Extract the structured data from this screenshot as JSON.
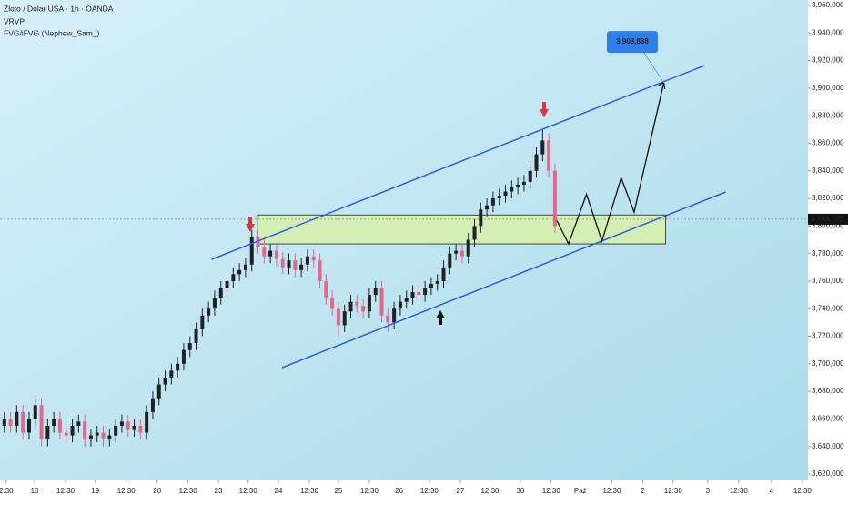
{
  "chart_data": {
    "type": "candlestick",
    "title": "Zloto / Dolar USA · 1h · OANDA",
    "indicators": [
      "VRVP",
      "FVG/iFVG (Nephew_Sam_)"
    ],
    "xlim": [
      -0.7,
      129.9
    ],
    "xticks": [
      {
        "value": 0.3,
        "label": "2:30"
      },
      {
        "value": 4.9,
        "label": "18"
      },
      {
        "value": 9.9,
        "label": "12:30"
      },
      {
        "value": 14.7,
        "label": "19"
      },
      {
        "value": 19.7,
        "label": "12:30"
      },
      {
        "value": 24.7,
        "label": "20"
      },
      {
        "value": 29.7,
        "label": "12:30"
      },
      {
        "value": 34.6,
        "label": "23"
      },
      {
        "value": 39.4,
        "label": "12:30"
      },
      {
        "value": 44.3,
        "label": "24"
      },
      {
        "value": 49.3,
        "label": "12:30"
      },
      {
        "value": 54,
        "label": "25"
      },
      {
        "value": 59,
        "label": "12:30"
      },
      {
        "value": 63.8,
        "label": "26"
      },
      {
        "value": 68.7,
        "label": "12:30"
      },
      {
        "value": 73.7,
        "label": "27"
      },
      {
        "value": 78.5,
        "label": "12:30"
      },
      {
        "value": 83.4,
        "label": "30"
      },
      {
        "value": 88.4,
        "label": "12:30"
      },
      {
        "value": 93.1,
        "label": "Paź"
      },
      {
        "value": 98.2,
        "label": "12:30"
      },
      {
        "value": 103.2,
        "label": "2"
      },
      {
        "value": 108.1,
        "label": "12:30"
      },
      {
        "value": 113.7,
        "label": "3"
      },
      {
        "value": 118.7,
        "label": "12:30"
      },
      {
        "value": 124,
        "label": "4"
      },
      {
        "value": 129,
        "label": "12:30"
      }
    ],
    "ylim": [
      3620000,
      3960000
    ],
    "yticks": [
      {
        "value": 3620000,
        "label": "3,620,000"
      },
      {
        "value": 3640000,
        "label": "3,640,000"
      },
      {
        "value": 3660000,
        "label": "3,660,000"
      },
      {
        "value": 3680000,
        "label": "3,680,000"
      },
      {
        "value": 3700000,
        "label": "3,700,000"
      },
      {
        "value": 3720000,
        "label": "3,720,000"
      },
      {
        "value": 3740000,
        "label": "3,740,000"
      },
      {
        "value": 3760000,
        "label": "3,760,000"
      },
      {
        "value": 3780000,
        "label": "3,780,000"
      },
      {
        "value": 3800000,
        "label": "3,800,000"
      },
      {
        "value": 3820000,
        "label": "3,820,000"
      },
      {
        "value": 3840000,
        "label": "3,840,000"
      },
      {
        "value": 3860000,
        "label": "3,860,000"
      },
      {
        "value": 3880000,
        "label": "3,880,000"
      },
      {
        "value": 3900000,
        "label": "3,900,000"
      },
      {
        "value": 3920000,
        "label": "3,920,000"
      },
      {
        "value": 3940000,
        "label": "3,940,000"
      },
      {
        "value": 3960000,
        "label": "3,960,000"
      }
    ],
    "up_color": "#1e2126",
    "down_color": "#e0698a",
    "candles": {
      "open": [
        3655000,
        3660000,
        3655000,
        3665000,
        3650000,
        3660000,
        3670000,
        3645000,
        3655000,
        3660000,
        3650000,
        3648000,
        3655000,
        3658000,
        3645000,
        3648000,
        3650000,
        3645000,
        3648000,
        3655000,
        3658000,
        3652000,
        3655000,
        3650000,
        3665000,
        3675000,
        3685000,
        3690000,
        3695000,
        3700000,
        3710000,
        3715000,
        3725000,
        3735000,
        3740000,
        3748000,
        3755000,
        3760000,
        3765000,
        3768000,
        3772000,
        3792000,
        3785000,
        3778000,
        3782000,
        3776000,
        3770000,
        3775000,
        3768000,
        3772000,
        3778000,
        3775000,
        3760000,
        3748000,
        3740000,
        3728000,
        3738000,
        3745000,
        3742000,
        3738000,
        3750000,
        3755000,
        3735000,
        3730000,
        3740000,
        3745000,
        3748000,
        3752000,
        3750000,
        3755000,
        3758000,
        3760000,
        3770000,
        3780000,
        3782000,
        3778000,
        3790000,
        3800000,
        3812000,
        3815000,
        3820000,
        3822000,
        3825000,
        3828000,
        3830000,
        3832000,
        3840000,
        3852000,
        3862000,
        3840000
      ],
      "high": [
        3665000,
        3665000,
        3670000,
        3670000,
        3665000,
        3675000,
        3675000,
        3660000,
        3665000,
        3665000,
        3655000,
        3660000,
        3663000,
        3663000,
        3653000,
        3655000,
        3655000,
        3653000,
        3660000,
        3663000,
        3663000,
        3660000,
        3660000,
        3670000,
        3680000,
        3690000,
        3695000,
        3700000,
        3705000,
        3715000,
        3720000,
        3730000,
        3740000,
        3745000,
        3753000,
        3760000,
        3765000,
        3770000,
        3773000,
        3777000,
        3797000,
        3797000,
        3790000,
        3787000,
        3787000,
        3781000,
        3780000,
        3780000,
        3777000,
        3783000,
        3783000,
        3780000,
        3765000,
        3753000,
        3745000,
        3743000,
        3750000,
        3750000,
        3747000,
        3755000,
        3760000,
        3760000,
        3740000,
        3745000,
        3750000,
        3753000,
        3757000,
        3757000,
        3760000,
        3763000,
        3765000,
        3775000,
        3785000,
        3787000,
        3787000,
        3795000,
        3805000,
        3817000,
        3820000,
        3825000,
        3827000,
        3830000,
        3833000,
        3835000,
        3837000,
        3845000,
        3857000,
        3870000,
        3867000,
        3845000
      ],
      "low": [
        3650000,
        3650000,
        3650000,
        3645000,
        3645000,
        3655000,
        3640000,
        3640000,
        3650000,
        3645000,
        3643000,
        3643000,
        3650000,
        3640000,
        3640000,
        3643000,
        3640000,
        3640000,
        3643000,
        3650000,
        3647000,
        3647000,
        3645000,
        3645000,
        3660000,
        3670000,
        3680000,
        3685000,
        3690000,
        3695000,
        3705000,
        3710000,
        3720000,
        3730000,
        3735000,
        3743000,
        3750000,
        3755000,
        3760000,
        3763000,
        3767000,
        3780000,
        3773000,
        3773000,
        3771000,
        3765000,
        3765000,
        3763000,
        3763000,
        3767000,
        3770000,
        3755000,
        3743000,
        3735000,
        3720000,
        3723000,
        3733000,
        3737000,
        3733000,
        3733000,
        3745000,
        3730000,
        3723000,
        3725000,
        3735000,
        3740000,
        3743000,
        3745000,
        3745000,
        3750000,
        3753000,
        3755000,
        3765000,
        3775000,
        3773000,
        3773000,
        3785000,
        3795000,
        3807000,
        3810000,
        3815000,
        3817000,
        3820000,
        3823000,
        3825000,
        3827000,
        3835000,
        3847000,
        3835000,
        3795000
      ],
      "close": [
        3660000,
        3655000,
        3665000,
        3650000,
        3660000,
        3670000,
        3645000,
        3655000,
        3660000,
        3650000,
        3648000,
        3655000,
        3658000,
        3645000,
        3648000,
        3650000,
        3645000,
        3648000,
        3655000,
        3658000,
        3652000,
        3655000,
        3650000,
        3665000,
        3675000,
        3685000,
        3690000,
        3695000,
        3700000,
        3710000,
        3715000,
        3725000,
        3735000,
        3740000,
        3748000,
        3755000,
        3760000,
        3765000,
        3768000,
        3772000,
        3792000,
        3785000,
        3778000,
        3782000,
        3776000,
        3770000,
        3775000,
        3768000,
        3772000,
        3778000,
        3775000,
        3760000,
        3748000,
        3740000,
        3728000,
        3738000,
        3745000,
        3742000,
        3738000,
        3750000,
        3755000,
        3735000,
        3730000,
        3740000,
        3745000,
        3748000,
        3752000,
        3750000,
        3755000,
        3758000,
        3760000,
        3770000,
        3780000,
        3782000,
        3778000,
        3790000,
        3800000,
        3812000,
        3815000,
        3820000,
        3822000,
        3825000,
        3828000,
        3830000,
        3832000,
        3840000,
        3852000,
        3862000,
        3840000,
        3800000
      ]
    },
    "annotations": {
      "channel_upper": {
        "x": [
          33.5,
          113.2
        ],
        "y": [
          3775810,
          3916427
        ],
        "color": "#2f5ee0"
      },
      "channel_lower": {
        "x": [
          44.9,
          116.6
        ],
        "y": [
          3697243,
          3824660
        ],
        "color": "#2f5ee0"
      },
      "zone": {
        "x": [
          40.9,
          106.9
        ],
        "y": [
          3787000,
          3808000
        ],
        "color": "#d6f0a8"
      },
      "projection": {
        "x": [
          89.3,
          91.2,
          94.1,
          96.6,
          99.7,
          101.8,
          106.6
        ],
        "y": [
          3804000,
          3787000,
          3823000,
          3789000,
          3835000,
          3810000,
          3904000
        ]
      },
      "target": {
        "value": 3903838,
        "label": "3 903,838"
      },
      "last_price": {
        "value": 3804905,
        "label": "3 804,905"
      }
    }
  }
}
